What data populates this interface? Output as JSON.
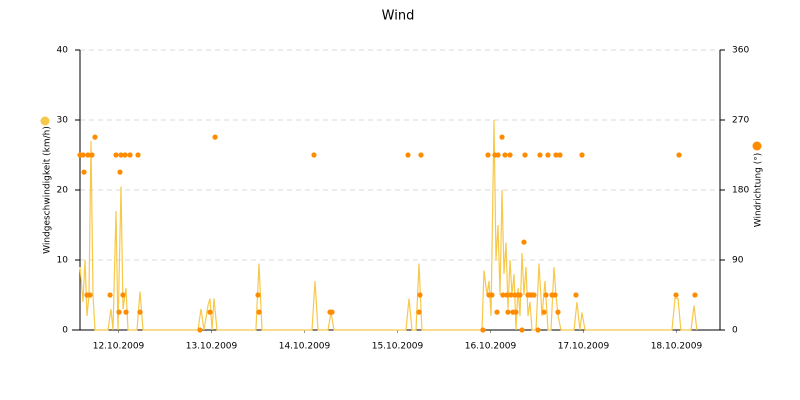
{
  "chart_data": {
    "type": "line",
    "title": "Wind",
    "ylabel": "Windgeschwindigkeit (km/h)",
    "y2label": "Windrichtung (°)",
    "xlim": [
      0.086,
      6.968
    ],
    "xticks": [
      {
        "value": 0.5,
        "label": "12.10.2009"
      },
      {
        "value": 1.5,
        "label": "13.10.2009"
      },
      {
        "value": 2.5,
        "label": "14.10.2009"
      },
      {
        "value": 3.5,
        "label": "15.10.2009"
      },
      {
        "value": 4.5,
        "label": "16.10.2009"
      },
      {
        "value": 5.5,
        "label": "17.10.2009"
      },
      {
        "value": 6.5,
        "label": "18.10.2009"
      }
    ],
    "ylim": [
      0,
      40
    ],
    "yticks": [
      0,
      10,
      20,
      30,
      40
    ],
    "y2lim": [
      0,
      360
    ],
    "y2ticks": [
      0,
      90,
      180,
      270,
      360
    ],
    "grid": true,
    "series": [
      {
        "type": "line",
        "color": "#f7c84a",
        "x": [
          0.086,
          0.118,
          0.14,
          0.161,
          0.183,
          0.204,
          0.226,
          0.247,
          0.387,
          0.419,
          0.441,
          0.473,
          0.495,
          0.527,
          0.548,
          0.581,
          0.602,
          0.699,
          0.731,
          0.763,
          1.355,
          1.387,
          1.419,
          1.462,
          1.484,
          1.505,
          1.527,
          1.559,
          1.978,
          2.011,
          2.043,
          2.581,
          2.613,
          2.645,
          2.753,
          2.785,
          2.817,
          3.591,
          3.624,
          3.656,
          3.699,
          3.731,
          3.763,
          4.409,
          4.43,
          4.462,
          4.484,
          4.505,
          4.538,
          4.559,
          4.581,
          4.602,
          4.624,
          4.645,
          4.667,
          4.688,
          4.71,
          4.731,
          4.753,
          4.774,
          4.796,
          4.817,
          4.839,
          4.86,
          4.882,
          4.903,
          4.925,
          4.946,
          4.989,
          5.022,
          5.054,
          5.086,
          5.118,
          5.151,
          5.183,
          5.204,
          5.226,
          5.258,
          5.398,
          5.43,
          5.462,
          5.484,
          5.516,
          6.452,
          6.484,
          6.516,
          6.548,
          6.656,
          6.688,
          6.72
        ],
        "values": [
          9,
          4,
          10,
          2,
          5,
          27,
          5,
          0,
          0,
          3,
          0,
          17,
          0,
          20.5,
          3,
          6,
          0,
          0,
          5.5,
          0,
          0,
          3,
          0,
          3.5,
          4.5,
          0,
          4.5,
          0,
          0,
          9.5,
          0,
          0,
          7,
          0,
          0,
          2.5,
          0,
          0,
          4.5,
          0,
          0,
          9.5,
          0,
          0,
          8.5,
          5,
          7,
          2,
          30,
          10,
          15,
          5,
          20,
          8,
          12.5,
          3,
          10,
          5,
          8,
          0,
          6,
          2,
          11,
          5,
          9,
          2,
          4,
          0,
          0,
          9.5,
          2,
          7,
          0,
          0,
          9,
          5,
          2,
          0,
          0,
          4,
          0,
          2.5,
          0,
          0,
          4.5,
          4.5,
          0,
          0,
          3.5,
          0
        ]
      },
      {
        "type": "scatter",
        "axis": "y2",
        "color": "#ff8c00",
        "x": [
          0.086,
          0.118,
          0.129,
          0.161,
          0.172,
          0.194,
          0.215,
          0.247,
          0.409,
          0.473,
          0.505,
          0.516,
          0.527,
          0.548,
          0.57,
          0.581,
          0.624,
          0.71,
          0.731,
          1.376,
          1.484,
          1.538,
          2.0,
          2.011,
          2.602,
          2.774,
          2.796,
          3.613,
          3.731,
          3.742,
          3.753,
          4.419,
          4.473,
          4.484,
          4.516,
          4.548,
          4.57,
          4.581,
          4.624,
          4.634,
          4.656,
          4.677,
          4.688,
          4.71,
          4.72,
          4.742,
          4.763,
          4.774,
          4.796,
          4.817,
          4.839,
          4.86,
          4.871,
          4.903,
          4.925,
          4.946,
          4.968,
          5.011,
          5.032,
          5.075,
          5.097,
          5.118,
          5.161,
          5.194,
          5.204,
          5.226,
          5.247,
          5.419,
          5.484,
          6.495,
          6.527,
          6.699
        ],
        "values": [
          225,
          225,
          203,
          45,
          225,
          45,
          225,
          248,
          45,
          225,
          23,
          203,
          225,
          45,
          225,
          23,
          225,
          225,
          23,
          0,
          23,
          248,
          45,
          23,
          225,
          23,
          23,
          225,
          23,
          45,
          225,
          0,
          225,
          45,
          45,
          225,
          23,
          225,
          248,
          45,
          225,
          45,
          23,
          225,
          45,
          23,
          45,
          23,
          45,
          45,
          0,
          113,
          225,
          45,
          45,
          45,
          45,
          0,
          225,
          23,
          45,
          225,
          45,
          45,
          225,
          23,
          225,
          45,
          225,
          45,
          225,
          45
        ]
      }
    ]
  }
}
